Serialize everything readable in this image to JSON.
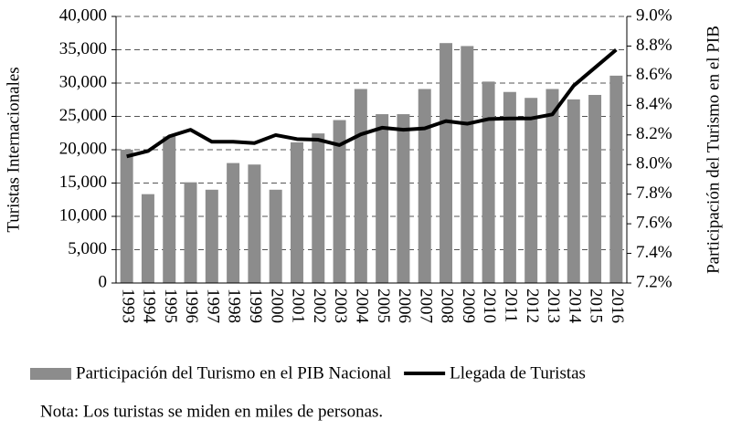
{
  "chart_data": {
    "type": "bar-line",
    "ylabel": "Turistas Internacionales",
    "y2label": "Participación del Turismo en el PIB",
    "note": "Nota: Los turistas se miden en miles de personas.",
    "categories": [
      "1993",
      "1994",
      "1995",
      "1996",
      "1997",
      "1998",
      "1999",
      "2000",
      "2001",
      "2002",
      "2003",
      "2004",
      "2005",
      "2006",
      "2007",
      "2008",
      "2009",
      "2010",
      "2011",
      "2012",
      "2013",
      "2014",
      "2015",
      "2016"
    ],
    "series": [
      {
        "name": "Participación del Turismo en el PIB Nacional",
        "type": "bar",
        "axis": "y2",
        "color": "#8c8c8c",
        "values": [
          8.1,
          7.8,
          8.19,
          7.88,
          7.83,
          8.01,
          8.0,
          7.83,
          8.15,
          8.21,
          8.3,
          8.51,
          8.34,
          8.34,
          8.51,
          8.82,
          8.8,
          8.56,
          8.49,
          8.45,
          8.51,
          8.44,
          8.47,
          8.6
        ]
      },
      {
        "name": "Llegada de Turistas",
        "type": "line",
        "color": "#000000",
        "values": [
          19000,
          19800,
          22000,
          23000,
          21200,
          21200,
          21000,
          22200,
          21600,
          21500,
          20700,
          22300,
          23300,
          23000,
          23200,
          24300,
          23900,
          24600,
          24700,
          24700,
          25300,
          29600,
          32300,
          35000
        ]
      }
    ],
    "ylim": [
      0,
      40000
    ],
    "yticks": [
      0,
      {
        "value": 5000,
        "label": "5,000"
      },
      {
        "value": 10000,
        "label": "10,000"
      },
      {
        "value": 15000,
        "label": "15,000"
      },
      {
        "value": 20000,
        "label": "20,000"
      },
      {
        "value": 25000,
        "label": "25,000"
      },
      {
        "value": 30000,
        "label": "30,000"
      },
      {
        "value": 35000,
        "label": "35,000"
      },
      {
        "value": 40000,
        "label": "40,000"
      }
    ],
    "y2lim": [
      7.2,
      9.0
    ],
    "y2ticks": [
      {
        "value": 7.2,
        "label": "7.2%"
      },
      {
        "value": 7.4,
        "label": "7.4%"
      },
      {
        "value": 7.6,
        "label": "7.6%"
      },
      {
        "value": 7.8,
        "label": "7.8%"
      },
      {
        "value": 8.0,
        "label": "8.0%"
      },
      {
        "value": 8.2,
        "label": "8.2%"
      },
      {
        "value": 8.4,
        "label": "8.4%"
      },
      {
        "value": 8.6,
        "label": "8.6%"
      },
      {
        "value": 8.8,
        "label": "8.8%"
      },
      {
        "value": 9.0,
        "label": "9.0%"
      }
    ],
    "grid": true
  }
}
